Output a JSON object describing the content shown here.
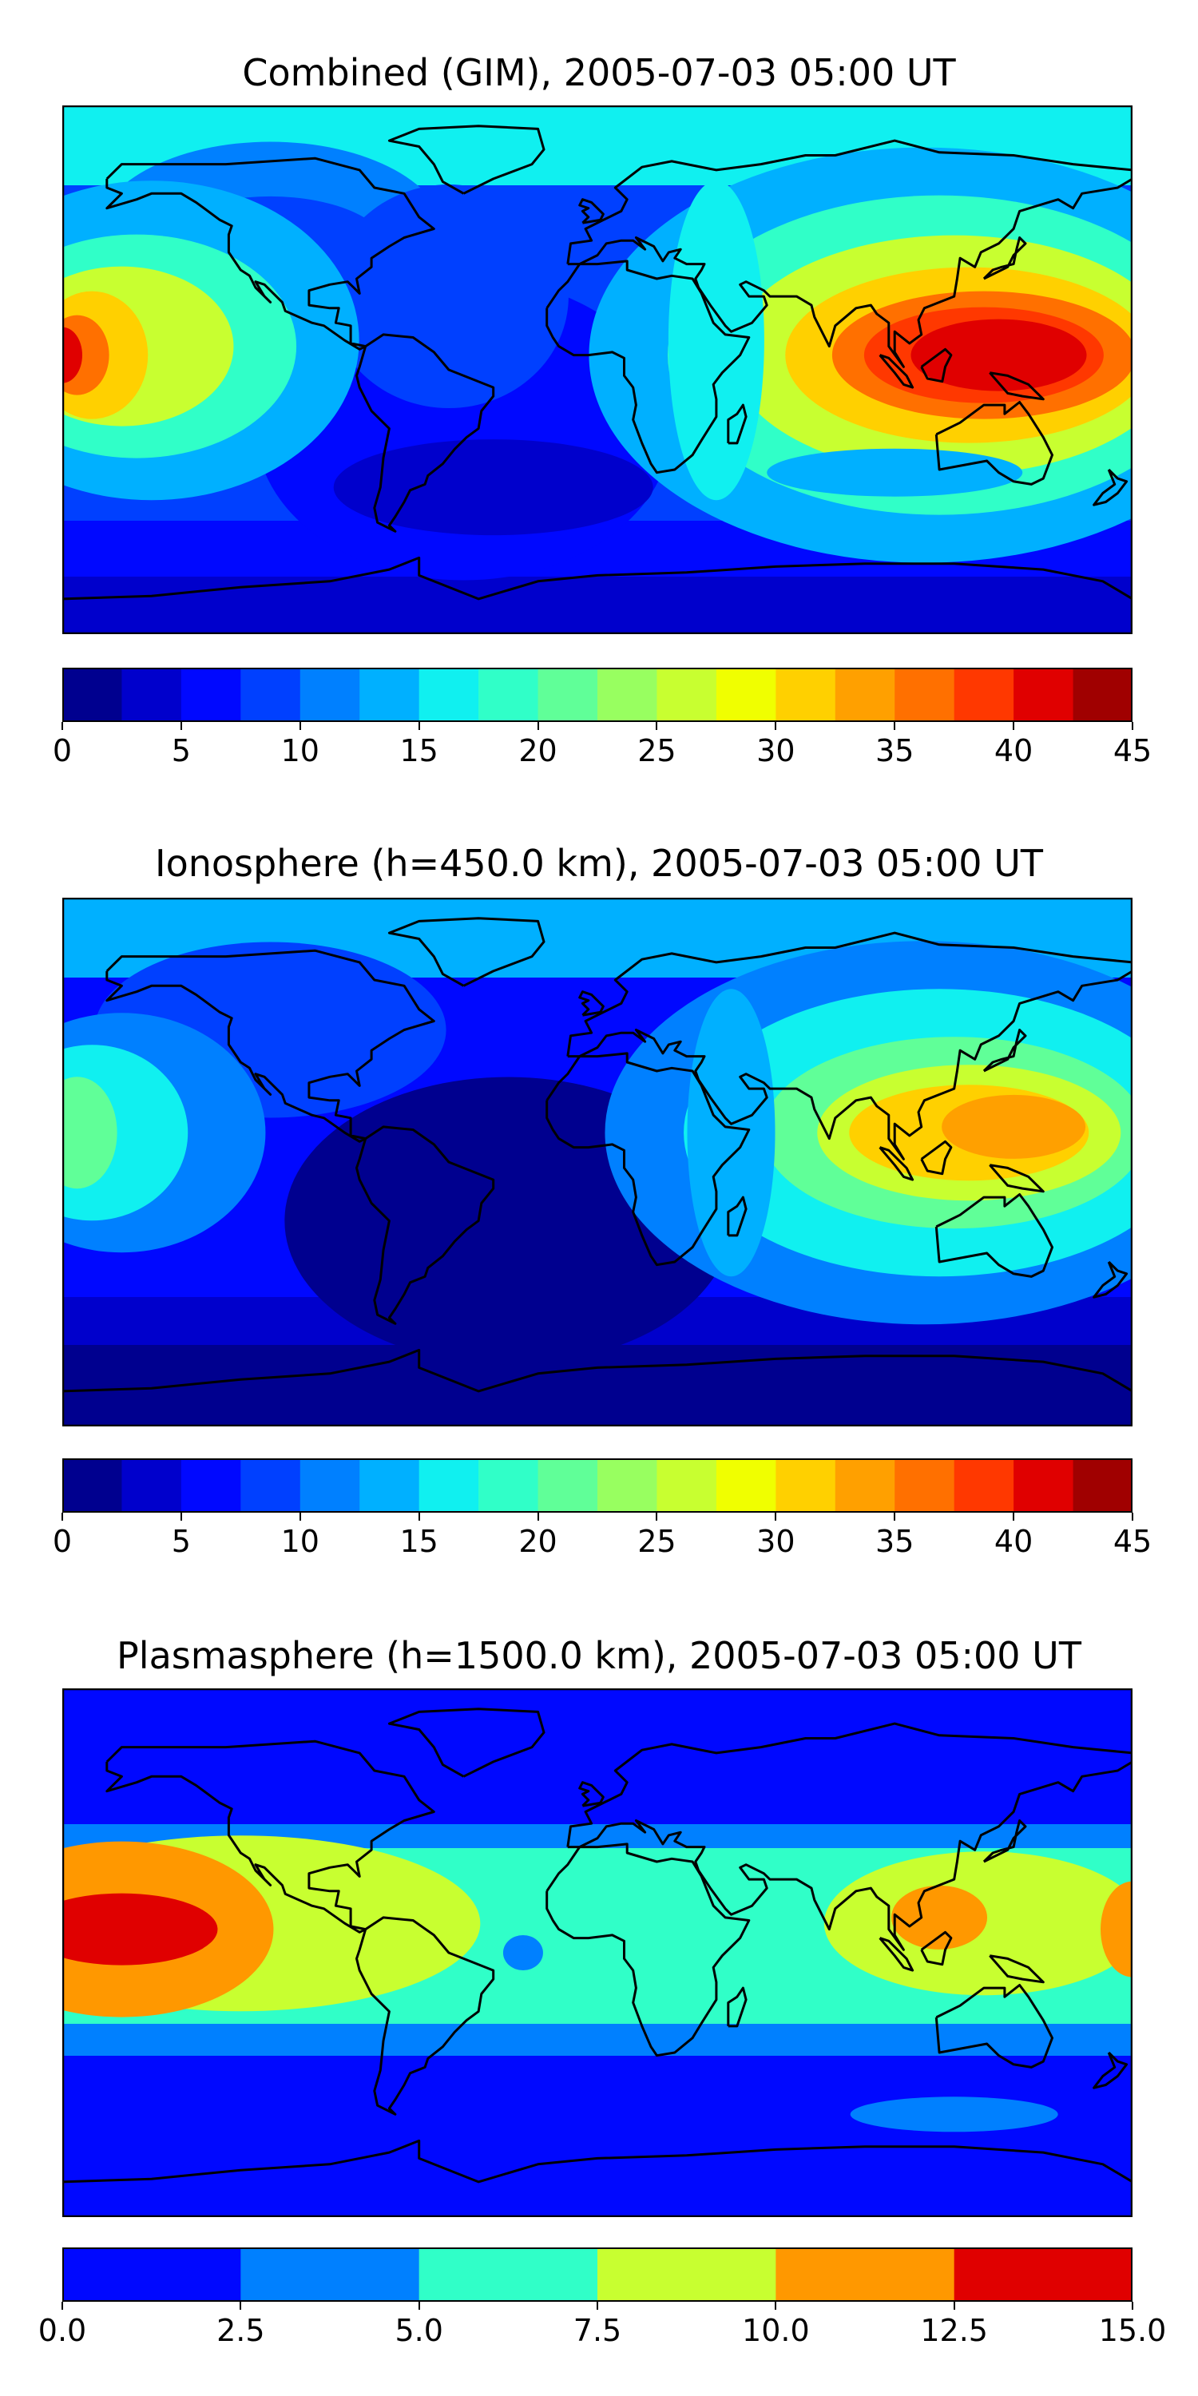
{
  "chart_data": [
    {
      "type": "heatmap",
      "title": "Combined (GIM), 2005-07-03 05:00 UT",
      "colorbar": {
        "ticks": [
          "0",
          "5",
          "10",
          "15",
          "20",
          "25",
          "30",
          "35",
          "40",
          "45"
        ],
        "levels": [
          0,
          2.5,
          5,
          7.5,
          10,
          12.5,
          15,
          17.5,
          20,
          22.5,
          25,
          27.5,
          30,
          32.5,
          35,
          37.5,
          40,
          42.5,
          45
        ],
        "colors": [
          "#00008f",
          "#0000cc",
          "#0008ff",
          "#0040ff",
          "#0080ff",
          "#00b0ff",
          "#10f0f0",
          "#30ffc8",
          "#60ff98",
          "#98ff60",
          "#c8ff30",
          "#f0ff00",
          "#ffd000",
          "#ffa000",
          "#ff7000",
          "#ff3800",
          "#e00000",
          "#a00000"
        ]
      },
      "maxima": [
        {
          "lon": 115,
          "lat": 5,
          "value": 42
        },
        {
          "lon": -175,
          "lat": 5,
          "value": 40
        }
      ],
      "annotation": ""
    },
    {
      "type": "heatmap",
      "title": "Ionosphere  (h=450.0 km), 2005-07-03 05:00 UT",
      "colorbar": {
        "ticks": [
          "0",
          "5",
          "10",
          "15",
          "20",
          "25",
          "30",
          "35",
          "40",
          "45"
        ],
        "levels": [
          0,
          2.5,
          5,
          7.5,
          10,
          12.5,
          15,
          17.5,
          20,
          22.5,
          25,
          27.5,
          30,
          32.5,
          35,
          37.5,
          40,
          42.5,
          45
        ],
        "colors": [
          "#00008f",
          "#0000cc",
          "#0008ff",
          "#0040ff",
          "#0080ff",
          "#00b0ff",
          "#10f0f0",
          "#30ffc8",
          "#60ff98",
          "#98ff60",
          "#c8ff30",
          "#f0ff00",
          "#ffd000",
          "#ffa000",
          "#ff7000",
          "#ff3800",
          "#e00000",
          "#a00000"
        ]
      },
      "maxima": [
        {
          "lon": 135,
          "lat": 10,
          "value": 33
        },
        {
          "lon": 100,
          "lat": 5,
          "value": 30
        }
      ]
    },
    {
      "type": "heatmap",
      "title": "Plasmasphere (h=1500.0 km), 2005-07-03 05:00 UT",
      "colorbar": {
        "ticks": [
          "0.0",
          "2.5",
          "5.0",
          "7.5",
          "10.0",
          "12.5",
          "15.0"
        ],
        "levels": [
          0,
          2.5,
          5,
          7.5,
          10,
          12.5,
          15
        ],
        "colors": [
          "#0008ff",
          "#0080ff",
          "#30ffc8",
          "#c8ff30",
          "#ff9800",
          "#e00000"
        ]
      },
      "maxima": [
        {
          "lon": -160,
          "lat": 8,
          "value": 13
        },
        {
          "lon": 115,
          "lat": 12,
          "value": 11
        }
      ]
    }
  ]
}
